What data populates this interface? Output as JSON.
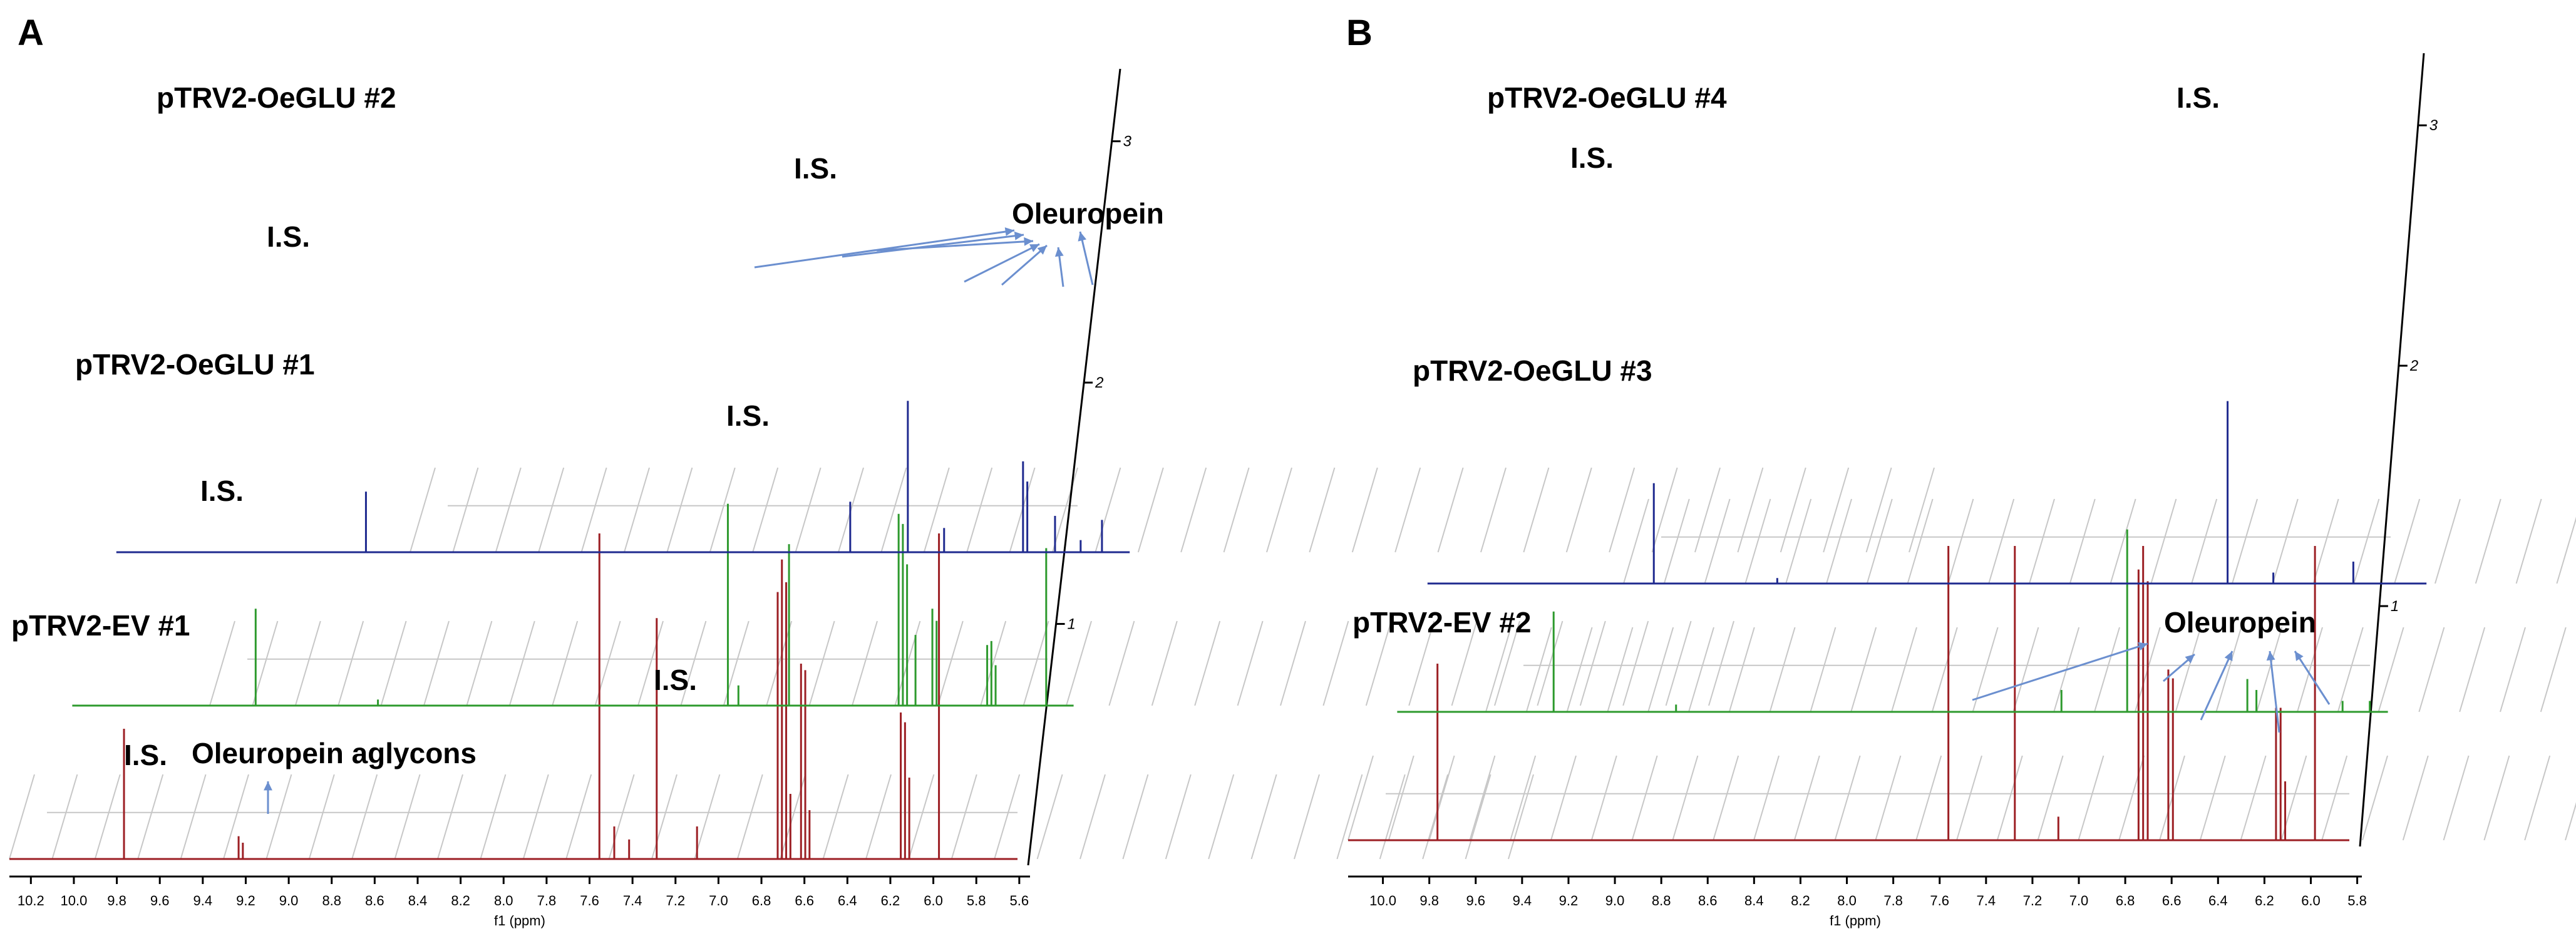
{
  "colors": {
    "trace_3": "#1f2a8f",
    "trace_2": "#2e9a2e",
    "trace_1": "#9c1f24",
    "arrow": "#6b8fcf",
    "grid": "#c7c7c7"
  },
  "chart_data": [
    {
      "type": "line",
      "panel": "A",
      "title": "",
      "xlabel": "f1 (ppm)",
      "ylabel": "",
      "xlim": [
        10.3,
        5.55
      ],
      "x_ticks": [
        "10.2",
        "10.0",
        "9.8",
        "9.6",
        "9.4",
        "9.2",
        "9.0",
        "8.8",
        "8.6",
        "8.4",
        "8.2",
        "8.0",
        "7.8",
        "7.6",
        "7.4",
        "7.2",
        "7.0",
        "6.8",
        "6.6",
        "6.4",
        "6.2",
        "6.0",
        "5.8",
        "5.6"
      ],
      "depth_ticks": [
        "1",
        "2",
        "3"
      ],
      "series": [
        {
          "name": "pTRV2-EV #1",
          "depth": 1,
          "color": "#9c1f24",
          "peaks": [
            {
              "ppm": 9.76,
              "height": 0.4
            },
            {
              "ppm": 9.22,
              "height": 0.07
            },
            {
              "ppm": 9.2,
              "height": 0.05
            },
            {
              "ppm": 7.52,
              "height": 1.0
            },
            {
              "ppm": 7.45,
              "height": 0.1
            },
            {
              "ppm": 7.38,
              "height": 0.06
            },
            {
              "ppm": 7.25,
              "height": 0.74
            },
            {
              "ppm": 7.06,
              "height": 0.1
            },
            {
              "ppm": 6.68,
              "height": 0.82
            },
            {
              "ppm": 6.66,
              "height": 0.92
            },
            {
              "ppm": 6.64,
              "height": 0.85
            },
            {
              "ppm": 6.62,
              "height": 0.2
            },
            {
              "ppm": 6.57,
              "height": 0.6
            },
            {
              "ppm": 6.55,
              "height": 0.58
            },
            {
              "ppm": 6.53,
              "height": 0.15
            },
            {
              "ppm": 6.1,
              "height": 0.45
            },
            {
              "ppm": 6.08,
              "height": 0.42
            },
            {
              "ppm": 6.06,
              "height": 0.25
            },
            {
              "ppm": 5.92,
              "height": 1.0
            }
          ]
        },
        {
          "name": "pTRV2-OeGLU #1",
          "depth": 2,
          "color": "#2e9a2e",
          "peaks": [
            {
              "ppm": 9.43,
              "height": 0.48
            },
            {
              "ppm": 8.85,
              "height": 0.03
            },
            {
              "ppm": 7.19,
              "height": 1.0
            },
            {
              "ppm": 7.14,
              "height": 0.1
            },
            {
              "ppm": 6.9,
              "height": 0.8
            },
            {
              "ppm": 6.38,
              "height": 0.95
            },
            {
              "ppm": 6.36,
              "height": 0.9
            },
            {
              "ppm": 6.34,
              "height": 0.7
            },
            {
              "ppm": 6.3,
              "height": 0.35
            },
            {
              "ppm": 6.22,
              "height": 0.48
            },
            {
              "ppm": 6.2,
              "height": 0.42
            },
            {
              "ppm": 5.96,
              "height": 0.3
            },
            {
              "ppm": 5.94,
              "height": 0.32
            },
            {
              "ppm": 5.92,
              "height": 0.2
            },
            {
              "ppm": 5.68,
              "height": 0.78
            }
          ]
        },
        {
          "name": "pTRV2-OeGLU #2",
          "depth": 3,
          "color": "#1f2a8f",
          "peaks": [
            {
              "ppm": 9.13,
              "height": 0.3
            },
            {
              "ppm": 6.86,
              "height": 0.25
            },
            {
              "ppm": 6.59,
              "height": 0.75
            },
            {
              "ppm": 6.42,
              "height": 0.12
            },
            {
              "ppm": 6.05,
              "height": 0.45
            },
            {
              "ppm": 6.03,
              "height": 0.35
            },
            {
              "ppm": 5.9,
              "height": 0.18
            },
            {
              "ppm": 5.78,
              "height": 0.06
            },
            {
              "ppm": 5.68,
              "height": 0.16
            }
          ]
        }
      ],
      "annotations": [
        {
          "text": "I.S.",
          "series": "pTRV2-OeGLU #2"
        },
        {
          "text": "I.S.",
          "series": "pTRV2-OeGLU #2"
        },
        {
          "text": "Oleuropein",
          "series": "pTRV2-OeGLU #2"
        },
        {
          "text": "I.S.",
          "series": "pTRV2-OeGLU #1"
        },
        {
          "text": "I.S.",
          "series": "pTRV2-OeGLU #1"
        },
        {
          "text": "I.S.",
          "series": "pTRV2-EV #1"
        },
        {
          "text": "I.S.",
          "series": "pTRV2-EV #1"
        },
        {
          "text": "Oleuropein aglycons",
          "series": "pTRV2-EV #1"
        }
      ]
    },
    {
      "type": "line",
      "panel": "B",
      "title": "",
      "xlabel": "f1 (ppm)",
      "ylabel": "",
      "xlim": [
        10.15,
        5.78
      ],
      "x_ticks": [
        "10.0",
        "9.8",
        "9.6",
        "9.4",
        "9.2",
        "9.0",
        "8.8",
        "8.6",
        "8.4",
        "8.2",
        "8.0",
        "7.8",
        "7.6",
        "7.4",
        "7.2",
        "7.0",
        "6.8",
        "6.6",
        "6.4",
        "6.2",
        "6.0",
        "5.8"
      ],
      "depth_ticks": [
        "1",
        "2",
        "3"
      ],
      "series": [
        {
          "name": "pTRV2-EV #2",
          "depth": 1,
          "color": "#9c1f24",
          "peaks": [
            {
              "ppm": 9.76,
              "height": 0.6
            },
            {
              "ppm": 7.53,
              "height": 1.0
            },
            {
              "ppm": 7.24,
              "height": 1.0
            },
            {
              "ppm": 7.05,
              "height": 0.08
            },
            {
              "ppm": 6.7,
              "height": 0.92
            },
            {
              "ppm": 6.68,
              "height": 1.0
            },
            {
              "ppm": 6.66,
              "height": 0.88
            },
            {
              "ppm": 6.57,
              "height": 0.58
            },
            {
              "ppm": 6.55,
              "height": 0.55
            },
            {
              "ppm": 6.1,
              "height": 0.45
            },
            {
              "ppm": 6.08,
              "height": 0.45
            },
            {
              "ppm": 6.06,
              "height": 0.2
            },
            {
              "ppm": 5.93,
              "height": 1.0
            }
          ]
        },
        {
          "name": "pTRV2-OeGLU #3",
          "depth": 2,
          "color": "#2e9a2e",
          "peaks": [
            {
              "ppm": 9.46,
              "height": 0.55
            },
            {
              "ppm": 8.92,
              "height": 0.04
            },
            {
              "ppm": 7.22,
              "height": 0.12
            },
            {
              "ppm": 6.93,
              "height": 1.0
            },
            {
              "ppm": 6.4,
              "height": 0.18
            },
            {
              "ppm": 6.36,
              "height": 0.12
            },
            {
              "ppm": 5.98,
              "height": 0.06
            },
            {
              "ppm": 5.86,
              "height": 0.06
            }
          ]
        },
        {
          "name": "pTRV2-OeGLU #4",
          "depth": 3,
          "color": "#1f2a8f",
          "peaks": [
            {
              "ppm": 9.16,
              "height": 0.55
            },
            {
              "ppm": 8.62,
              "height": 0.03
            },
            {
              "ppm": 6.65,
              "height": 1.0
            },
            {
              "ppm": 6.45,
              "height": 0.06
            },
            {
              "ppm": 6.1,
              "height": 0.12
            }
          ]
        }
      ],
      "annotations": [
        {
          "text": "I.S.",
          "series": "pTRV2-OeGLU #4"
        },
        {
          "text": "I.S.",
          "series": "pTRV2-OeGLU #4"
        },
        {
          "text": "Oleuropein",
          "series": "pTRV2-EV #2"
        }
      ]
    }
  ]
}
